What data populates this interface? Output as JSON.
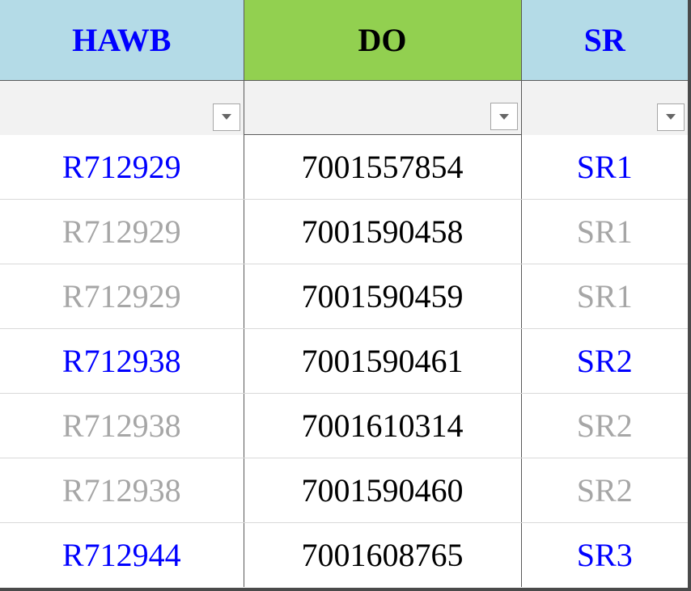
{
  "headers": {
    "hawb": "HAWB",
    "do": "DO",
    "sr": "SR"
  },
  "colors": {
    "header_blue_bg": "#b4dbe7",
    "header_green_bg": "#92d050",
    "header_blue_text": "#0000ff",
    "first_of_group_text": "#0000ff",
    "repeat_text": "#a6a6a6",
    "do_text": "#000000"
  },
  "rows": [
    {
      "hawb": "R712929",
      "do": "7001557854",
      "sr": "SR1",
      "first": true
    },
    {
      "hawb": "R712929",
      "do": "7001590458",
      "sr": "SR1",
      "first": false
    },
    {
      "hawb": "R712929",
      "do": "7001590459",
      "sr": "SR1",
      "first": false
    },
    {
      "hawb": "R712938",
      "do": "7001590461",
      "sr": "SR2",
      "first": true
    },
    {
      "hawb": "R712938",
      "do": "7001610314",
      "sr": "SR2",
      "first": false
    },
    {
      "hawb": "R712938",
      "do": "7001590460",
      "sr": "SR2",
      "first": false
    },
    {
      "hawb": "R712944",
      "do": "7001608765",
      "sr": "SR3",
      "first": true
    }
  ]
}
